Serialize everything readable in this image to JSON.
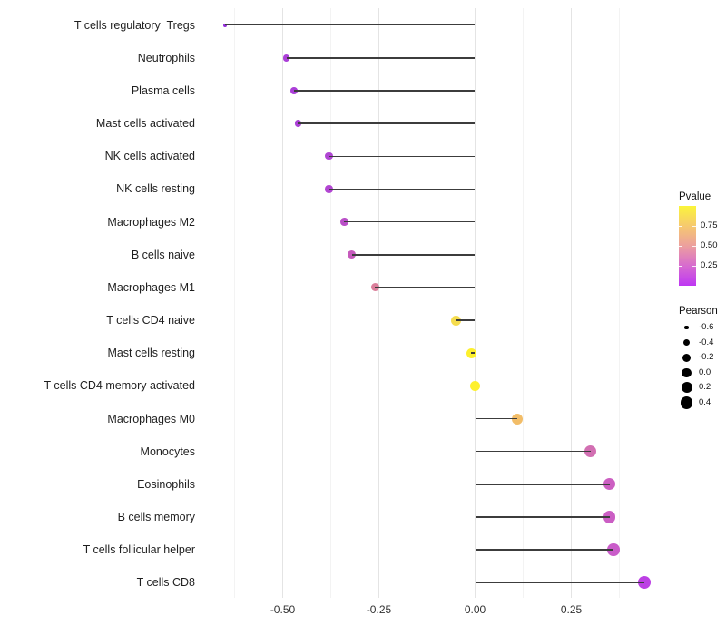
{
  "chart_data": {
    "type": "lollipop",
    "title": "",
    "xlabel": "",
    "ylabel": "",
    "x_axis": {
      "tick_labels": [
        "-0.50",
        "-0.25",
        "0.00",
        "0.25"
      ],
      "tick_values": [
        -0.5,
        -0.25,
        0.0,
        0.25
      ],
      "minor_tick_values": [
        -0.625,
        -0.375,
        -0.125,
        0.125,
        0.375
      ],
      "range": [
        -0.71,
        0.5
      ]
    },
    "grid": {
      "major_color": "#e4e4e4",
      "minor_color": "#f3f3f3",
      "horizontal": false
    },
    "stem_color": "#3c3c3c",
    "baseline_value": 0.0,
    "points": [
      {
        "label": "T cells regulatory  Tregs",
        "pearson": -0.65,
        "color": "#942ddb",
        "radius": 2.2
      },
      {
        "label": "Neutrophils",
        "pearson": -0.49,
        "color": "#ab3fd8",
        "radius": 3.7
      },
      {
        "label": "Plasma cells",
        "pearson": -0.47,
        "color": "#ab3fd8",
        "radius": 3.8
      },
      {
        "label": "Mast cells activated",
        "pearson": -0.46,
        "color": "#ab40d6",
        "radius": 3.8
      },
      {
        "label": "NK cells activated",
        "pearson": -0.38,
        "color": "#b046d3",
        "radius": 4.2
      },
      {
        "label": "NK cells resting",
        "pearson": -0.38,
        "color": "#b246d2",
        "radius": 4.2
      },
      {
        "label": "Macrophages M2",
        "pearson": -0.34,
        "color": "#ba50c8",
        "radius": 4.3
      },
      {
        "label": "B cells naive",
        "pearson": -0.32,
        "color": "#c65abc",
        "radius": 4.4
      },
      {
        "label": "Macrophages M1",
        "pearson": -0.26,
        "color": "#db7f9b",
        "radius": 4.5
      },
      {
        "label": "T cells CD4 naive",
        "pearson": -0.05,
        "color": "#f5dc4e",
        "radius": 5.5
      },
      {
        "label": "Mast cells resting",
        "pearson": -0.01,
        "color": "#fdf02d",
        "radius": 5.5
      },
      {
        "label": "T cells CD4 memory activated",
        "pearson": 0.0,
        "color": "#fdf02d",
        "radius": 5.6
      },
      {
        "label": "Macrophages M0",
        "pearson": 0.11,
        "color": "#f2bd68",
        "radius": 6.0
      },
      {
        "label": "Monocytes",
        "pearson": 0.3,
        "color": "#d26fb2",
        "radius": 6.5
      },
      {
        "label": "Eosinophils",
        "pearson": 0.35,
        "color": "#cc5fc2",
        "radius": 6.6
      },
      {
        "label": "B cells memory",
        "pearson": 0.35,
        "color": "#cb5ec4",
        "radius": 6.6
      },
      {
        "label": "T cells follicular helper",
        "pearson": 0.36,
        "color": "#c95cc9",
        "radius": 6.7
      },
      {
        "label": "T cells CD8",
        "pearson": 0.44,
        "color": "#bc40e4",
        "radius": 7.0
      }
    ],
    "legend_pvalue": {
      "title": "Pvalue",
      "tick_labels": [
        "0.75",
        "0.50",
        "0.25"
      ],
      "tick_values": [
        0.75,
        0.5,
        0.25
      ],
      "scale_top_value": 1.0,
      "scale_bottom_value": 0.0,
      "gradient_top_to_bottom": [
        "#fbf53a",
        "#f6c96f",
        "#ec9f9e",
        "#d76bcf",
        "#be37f3"
      ]
    },
    "legend_pearson": {
      "title": "Pearson",
      "dot_color": "#000000",
      "entries": [
        {
          "label": "-0.6",
          "radius": 2.3
        },
        {
          "label": "-0.4",
          "radius": 3.6
        },
        {
          "label": "-0.2",
          "radius": 4.5
        },
        {
          "label": "0.0",
          "radius": 5.3
        },
        {
          "label": "0.2",
          "radius": 6.0
        },
        {
          "label": "0.4",
          "radius": 6.7
        }
      ]
    }
  }
}
